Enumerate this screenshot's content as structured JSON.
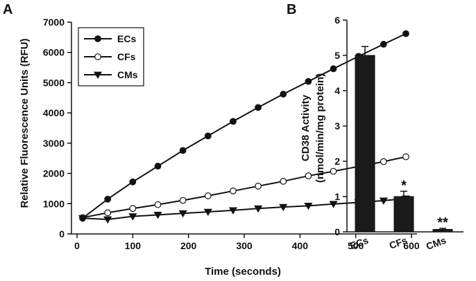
{
  "chart_data": [
    {
      "panel_label": "A",
      "type": "line",
      "xlabel": "Time (seconds)",
      "ylabel": "Relative Fluorescence Units (RFU)",
      "xlim": [
        -10,
        610
      ],
      "ylim": [
        0,
        7000
      ],
      "xticks": [
        0,
        100,
        200,
        300,
        400,
        500,
        600
      ],
      "yticks": [
        0,
        1000,
        2000,
        3000,
        4000,
        5000,
        6000,
        7000
      ],
      "legend_position": "top-left",
      "grid": false,
      "x": [
        10,
        55,
        100,
        145,
        190,
        235,
        280,
        325,
        370,
        415,
        460,
        505,
        550,
        590
      ],
      "series": [
        {
          "name": "ECs",
          "marker": "filled-circle",
          "color": "#111111",
          "values": [
            520,
            1150,
            1720,
            2240,
            2760,
            3240,
            3720,
            4180,
            4620,
            5040,
            5460,
            5870,
            6270,
            6620
          ]
        },
        {
          "name": "CFs",
          "marker": "open-circle",
          "color": "#111111",
          "values": [
            540,
            700,
            840,
            970,
            1110,
            1260,
            1420,
            1580,
            1740,
            1920,
            2070,
            2230,
            2390,
            2550
          ]
        },
        {
          "name": "CMs",
          "marker": "filled-triangle-down",
          "color": "#111111",
          "values": [
            520,
            480,
            580,
            630,
            680,
            730,
            780,
            840,
            890,
            930,
            990,
            1040,
            1100,
            1170
          ]
        }
      ]
    },
    {
      "panel_label": "B",
      "type": "bar",
      "ylabel_line1": "CD38 Activity",
      "ylabel_line2": "(nmol/min/mg protein)",
      "ylim": [
        0,
        6
      ],
      "yticks": [
        0,
        1,
        2,
        3,
        4,
        5,
        6
      ],
      "categories": [
        "ECs",
        "CFs",
        "CMs"
      ],
      "values": [
        5.0,
        1.0,
        0.07
      ],
      "errors": [
        0.25,
        0.15,
        0.03
      ],
      "significance": [
        "",
        "*",
        "**"
      ],
      "bar_color": "#1a1a1a"
    }
  ]
}
